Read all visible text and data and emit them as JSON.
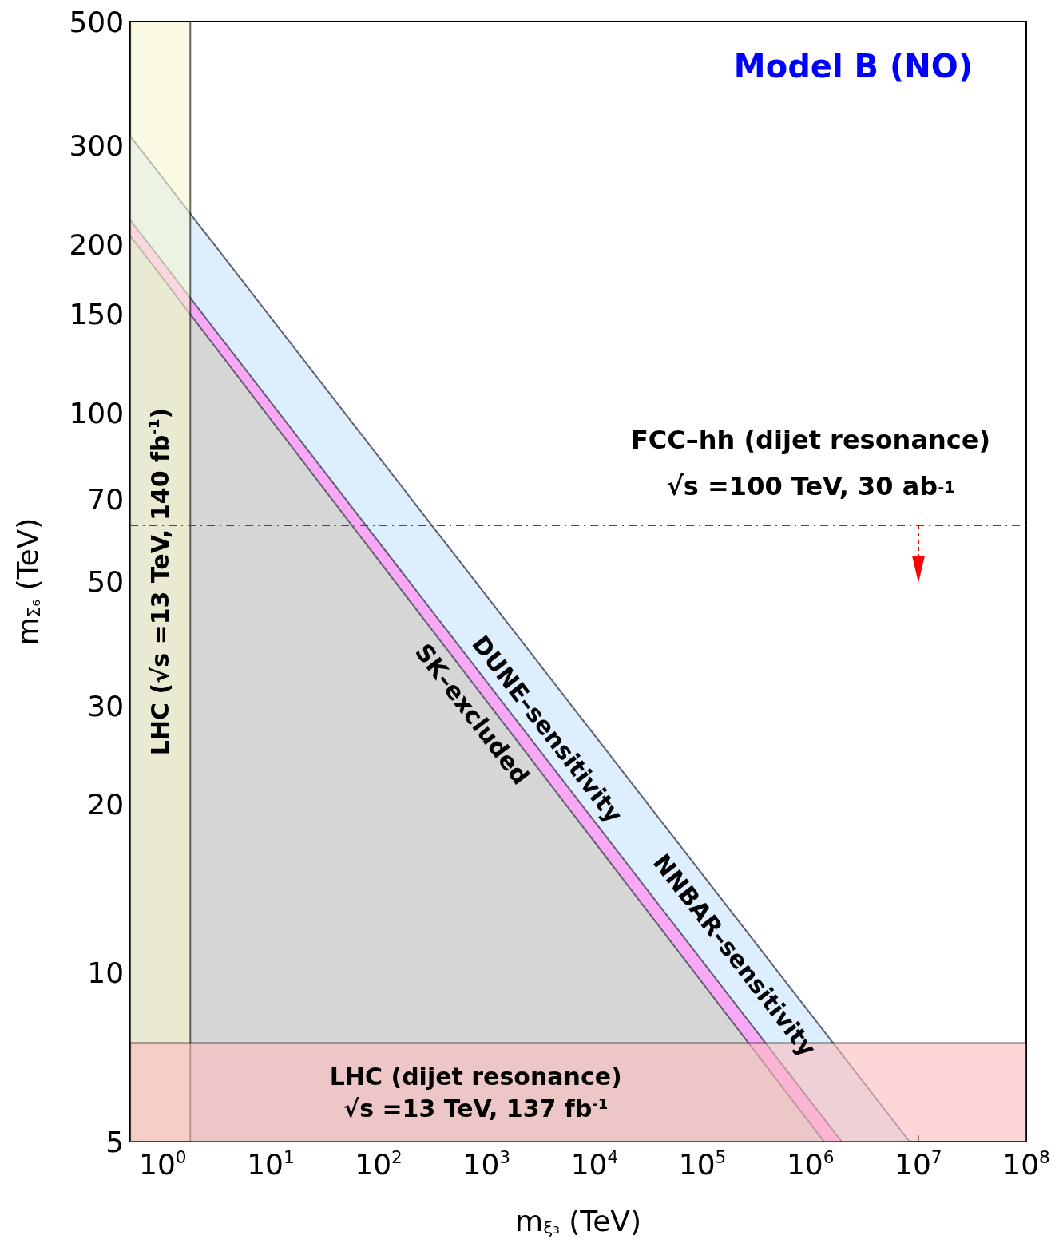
{
  "chart_data": {
    "type": "area",
    "title": "Model B (NO)",
    "xlabel": "m$_{ξ₃}$ (TeV)",
    "ylabel": "m$_{Σ₆}$ (TeV)",
    "log": "xy",
    "xlim": [
      0.5,
      100000000
    ],
    "ylim": [
      5,
      500
    ],
    "xticks": [
      {
        "value": 1,
        "label": "10$^{0}$"
      },
      {
        "value": 10,
        "label": "10$^{1}$"
      },
      {
        "value": 100,
        "label": "10$^{2}$"
      },
      {
        "value": 1000,
        "label": "10$^{3}$"
      },
      {
        "value": 10000,
        "label": "10$^{4}$"
      },
      {
        "value": 100000,
        "label": "10$^{5}$"
      },
      {
        "value": 1000000,
        "label": "10$^{6}$"
      },
      {
        "value": 10000000,
        "label": "10$^{7}$"
      },
      {
        "value": 100000000,
        "label": "10$^{8}$"
      }
    ],
    "yticks": [
      5,
      10,
      20,
      30,
      50,
      70,
      100,
      150,
      200,
      300,
      500
    ],
    "series": [
      {
        "name": "NNBAR–sensitivity",
        "color": "#ddeeff",
        "x": [
          0.5,
          8300000
        ],
        "values": [
          312,
          5
        ]
      },
      {
        "name": "DUNE–sensitivity",
        "color": "#f9a8f5",
        "x": [
          0.5,
          1950000
        ],
        "values": [
          221,
          5
        ]
      },
      {
        "name": "SK–excluded",
        "color": "#d6d6d6",
        "x": [
          0.5,
          1340000
        ],
        "values": [
          207,
          5
        ]
      }
    ],
    "bands": [
      {
        "axis": "x",
        "from": 0.5,
        "to": 1.8,
        "label": "LHC (√s =13 TeV, 140 fb$^{-1}$)",
        "color": "#f7f7d0"
      },
      {
        "axis": "y",
        "from": 5,
        "to": 7.5,
        "label": "LHC (dijet resonance)\n√s =13 TeV, 137 fb$^{-1}$",
        "color": "#fbbcbc"
      }
    ],
    "ref_lines": [
      {
        "axis": "y",
        "value": 63,
        "color": "#ff0000",
        "line_style": "dashed"
      }
    ],
    "annotations": [
      "FCC–hh (dijet resonance)\n√s =100 TeV, 30 ab$^{-1}$"
    ]
  }
}
